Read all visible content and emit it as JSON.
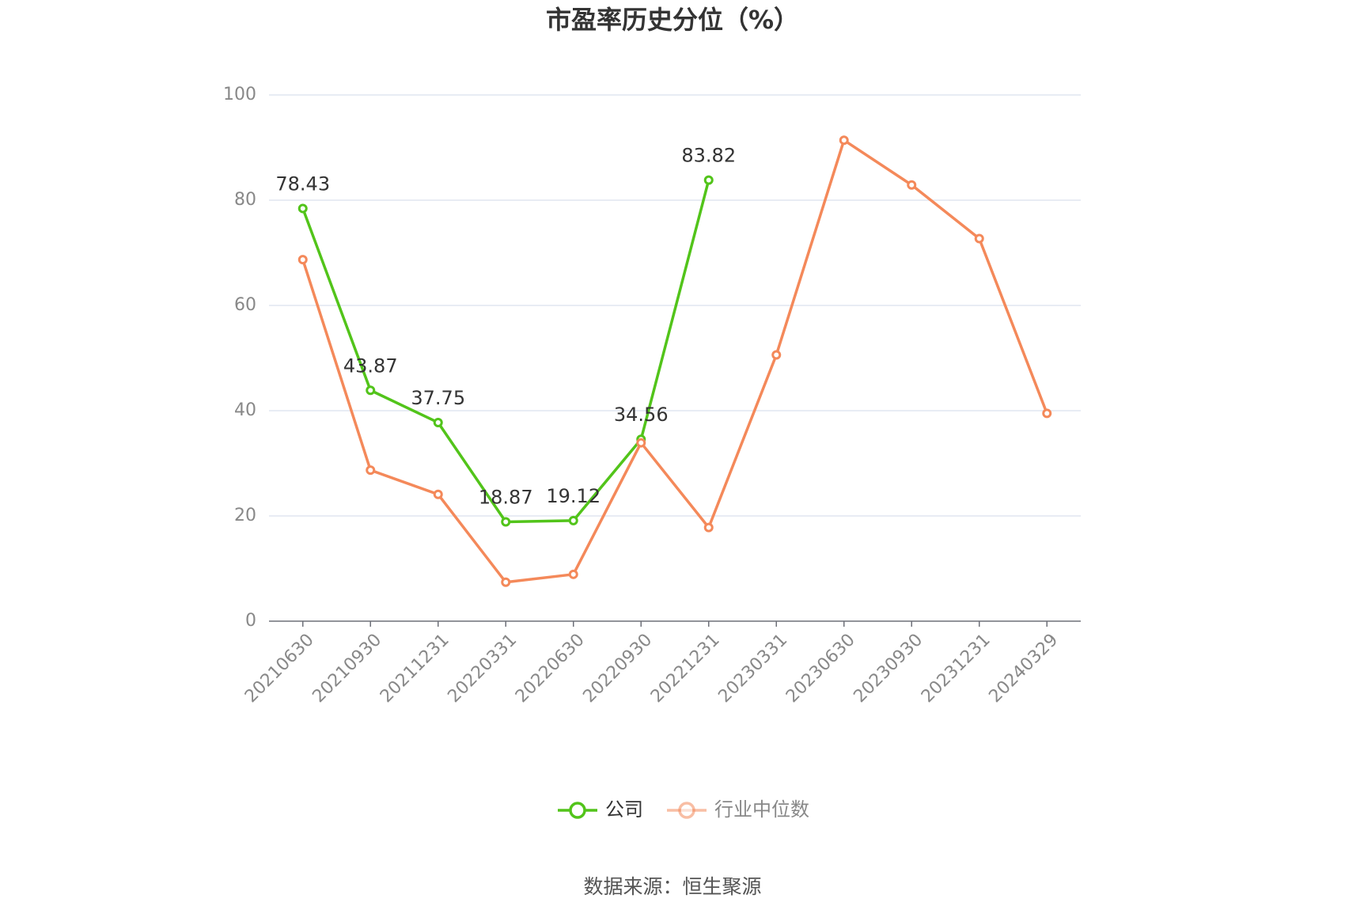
{
  "chart_data": {
    "type": "line",
    "title": "市盈率历史分位（%）",
    "categories": [
      "20210630",
      "20210930",
      "20211231",
      "20220331",
      "20220630",
      "20220930",
      "20221231",
      "20230331",
      "20230630",
      "20230930",
      "20231231",
      "20240329"
    ],
    "series": [
      {
        "name": "公司",
        "color": "#52c41a",
        "values": [
          78.43,
          43.87,
          37.75,
          18.87,
          19.12,
          34.56,
          83.82,
          null,
          null,
          null,
          null,
          null
        ],
        "data_labels": true
      },
      {
        "name": "行业中位数",
        "color": "#f4895a",
        "values": [
          68.7,
          28.7,
          24.1,
          7.4,
          8.9,
          33.9,
          17.8,
          50.6,
          91.4,
          82.9,
          72.7,
          39.5
        ],
        "data_labels": false
      }
    ],
    "ylim": [
      0,
      100
    ],
    "yticks": [
      0,
      20,
      40,
      60,
      80,
      100
    ],
    "grid": true,
    "legend": "bottom",
    "source": "数据来源：恒生聚源"
  }
}
